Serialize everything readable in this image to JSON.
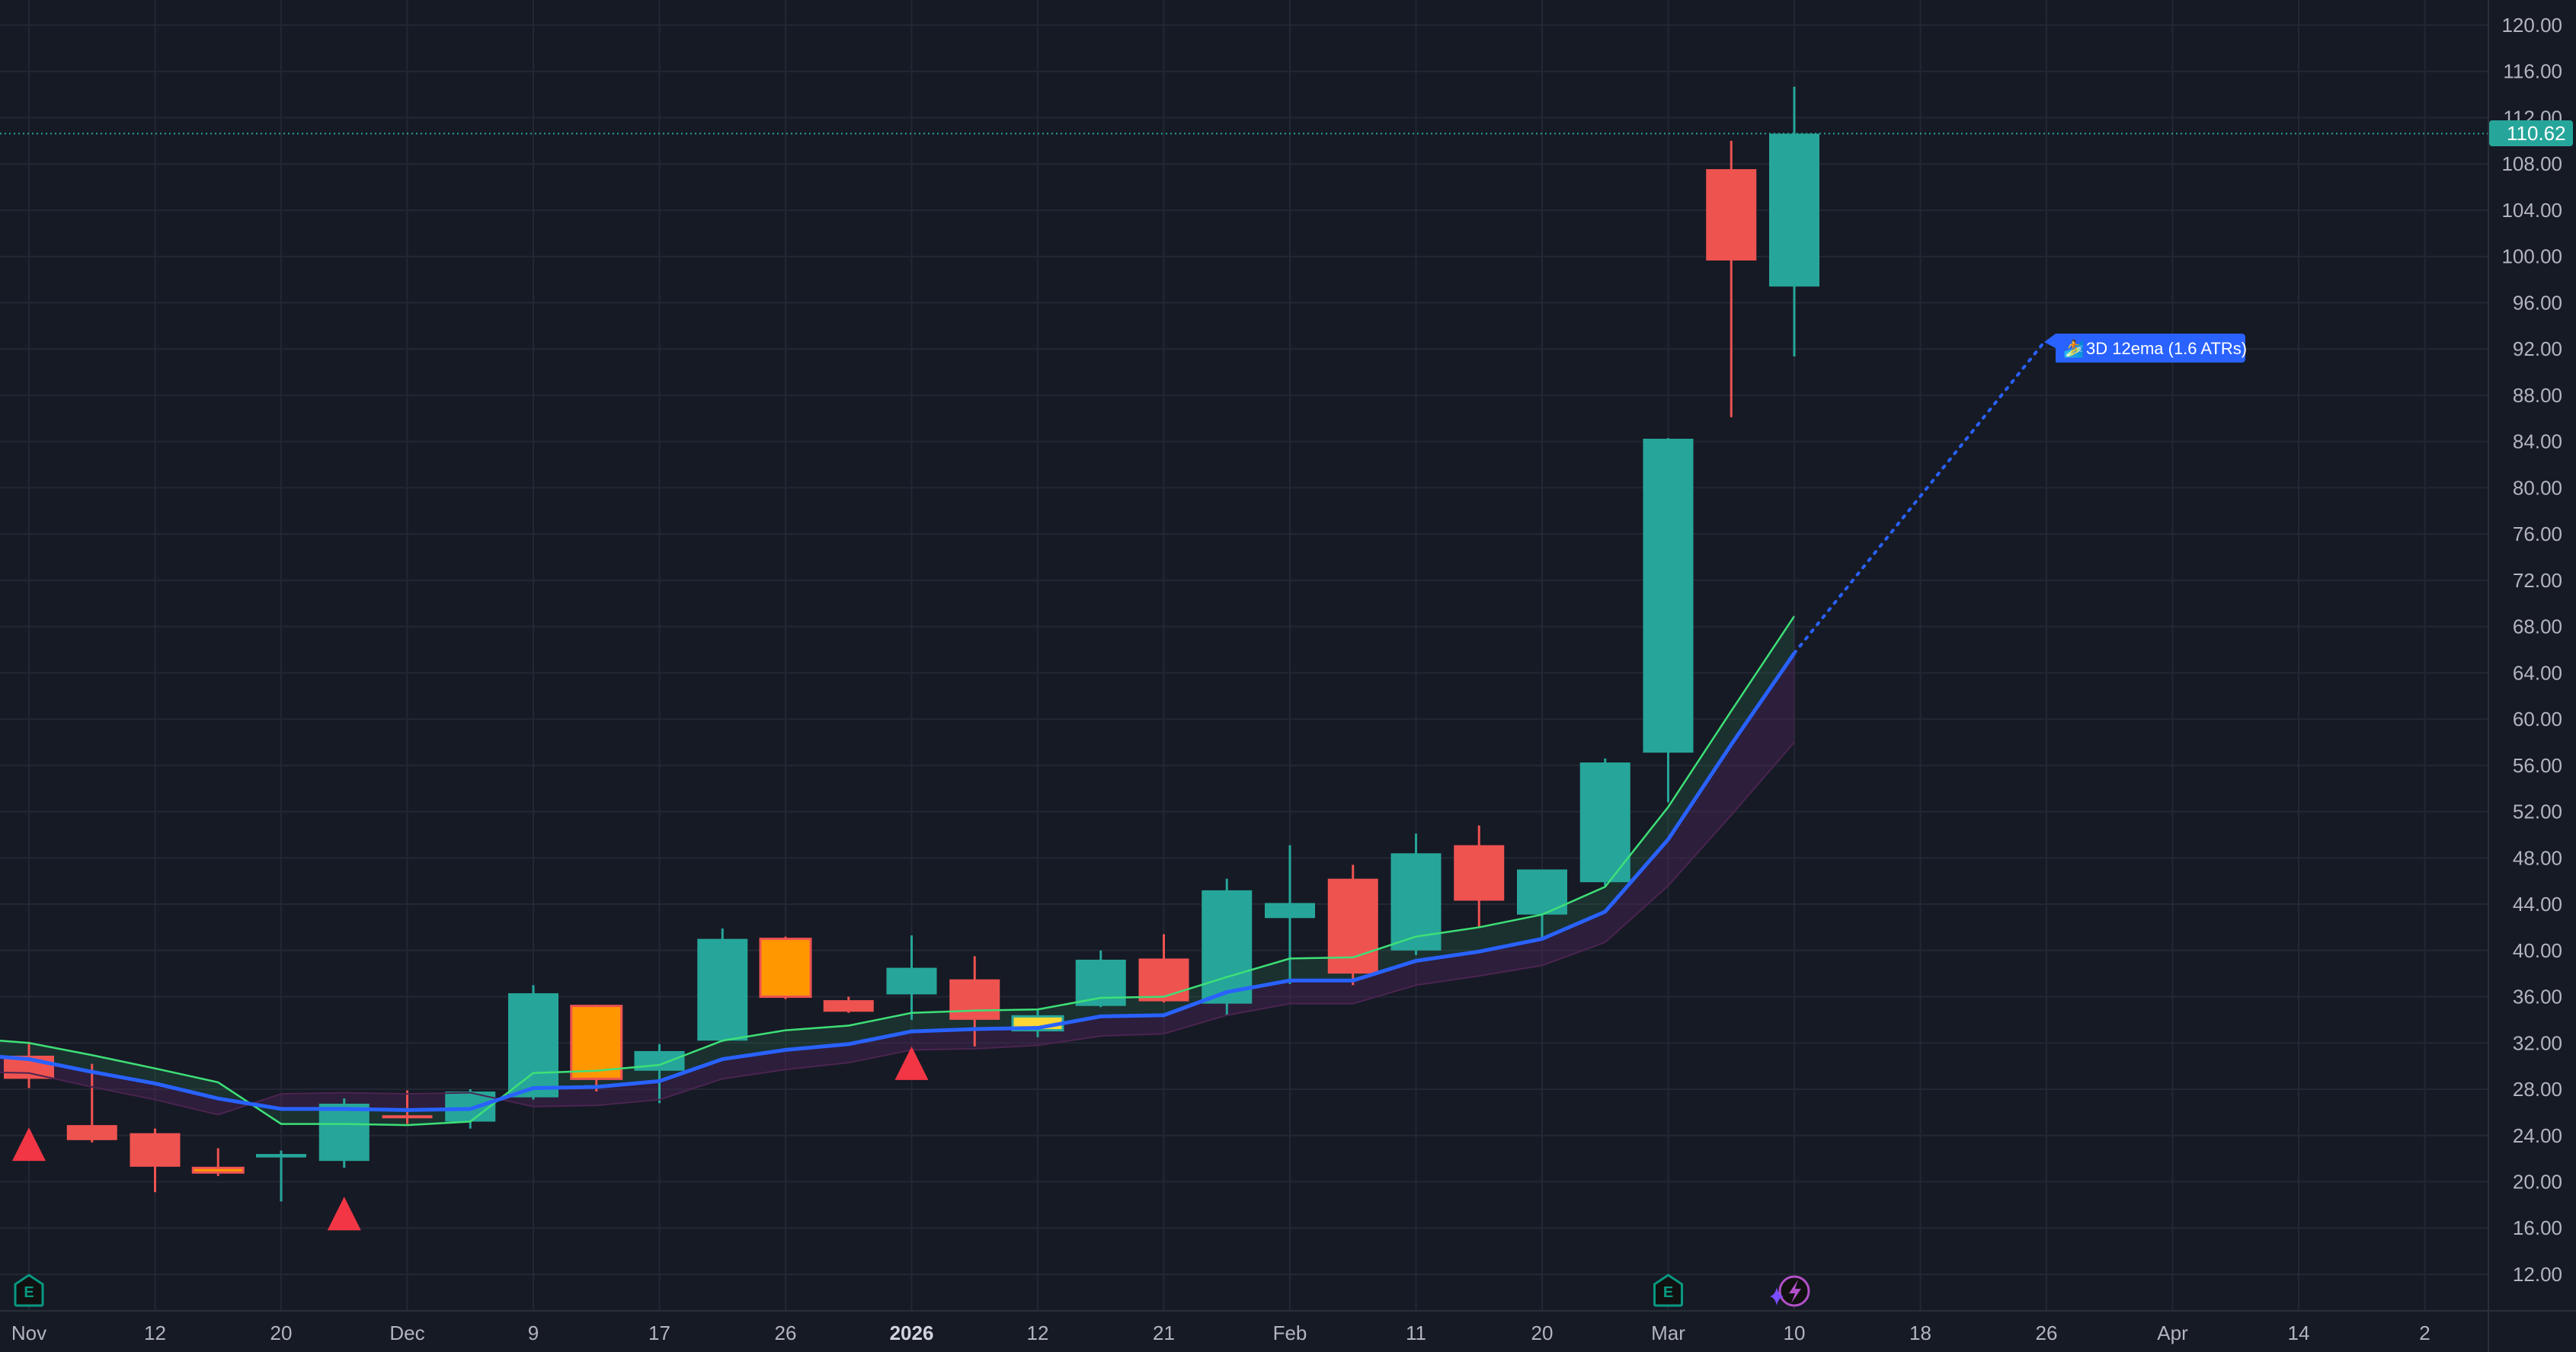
{
  "chart_data": {
    "type": "candlestick",
    "title": "",
    "timeframe": "3D",
    "xlabel": "",
    "ylabel": "",
    "ylim": [
      8.5,
      122.2
    ],
    "y_scale": "linear",
    "grid": true,
    "legend": null,
    "y_ticks": [
      "120.00",
      "116.00",
      "112.00",
      "108.00",
      "104.00",
      "100.00",
      "96.00",
      "92.00",
      "88.00",
      "84.00",
      "80.00",
      "76.00",
      "72.00",
      "68.00",
      "64.00",
      "60.00",
      "56.00",
      "52.00",
      "48.00",
      "44.00",
      "40.00",
      "36.00",
      "32.00",
      "28.00",
      "24.00",
      "20.00",
      "16.00",
      "12.00"
    ],
    "x_ticks": [
      {
        "label": "Nov",
        "bold": false
      },
      {
        "label": "12",
        "bold": false
      },
      {
        "label": "20",
        "bold": false
      },
      {
        "label": "Dec",
        "bold": false
      },
      {
        "label": "9",
        "bold": false
      },
      {
        "label": "17",
        "bold": false
      },
      {
        "label": "26",
        "bold": false
      },
      {
        "label": "2026",
        "bold": true
      },
      {
        "label": "12",
        "bold": false
      },
      {
        "label": "21",
        "bold": false
      },
      {
        "label": "Feb",
        "bold": false
      },
      {
        "label": "11",
        "bold": false
      },
      {
        "label": "20",
        "bold": false
      },
      {
        "label": "Mar",
        "bold": false
      },
      {
        "label": "10",
        "bold": false
      },
      {
        "label": "18",
        "bold": false
      },
      {
        "label": "26",
        "bold": false
      },
      {
        "label": "Apr",
        "bold": false
      },
      {
        "label": "14",
        "bold": false
      },
      {
        "label": "2",
        "bold": false
      }
    ],
    "candles": [
      {
        "o": 30.9,
        "h": 32.1,
        "l": 28.1,
        "c": 28.9,
        "color": "red"
      },
      {
        "o": 24.9,
        "h": 30.2,
        "l": 23.4,
        "c": 23.6,
        "color": "red"
      },
      {
        "o": 24.2,
        "h": 24.6,
        "l": 19.1,
        "c": 21.3,
        "color": "red"
      },
      {
        "o": 21.2,
        "h": 22.9,
        "l": 20.5,
        "c": 20.8,
        "color": "orange"
      },
      {
        "o": 22.1,
        "h": 22.7,
        "l": 18.3,
        "c": 22.4,
        "color": "teal"
      },
      {
        "o": 21.8,
        "h": 27.2,
        "l": 21.2,
        "c": 26.75,
        "color": "teal"
      },
      {
        "o": 25.75,
        "h": 27.9,
        "l": 25.0,
        "c": 25.65,
        "color": "red"
      },
      {
        "o": 25.2,
        "h": 28.0,
        "l": 24.6,
        "c": 27.8,
        "color": "teal"
      },
      {
        "o": 27.3,
        "h": 37.0,
        "l": 27.1,
        "c": 36.3,
        "color": "teal"
      },
      {
        "o": 35.2,
        "h": 35.3,
        "l": 27.8,
        "c": 28.9,
        "color": "orange"
      },
      {
        "o": 29.6,
        "h": 31.9,
        "l": 26.8,
        "c": 31.3,
        "color": "teal"
      },
      {
        "o": 32.2,
        "h": 41.9,
        "l": 32.1,
        "c": 41.0,
        "color": "teal"
      },
      {
        "o": 41.0,
        "h": 41.2,
        "l": 35.8,
        "c": 36.0,
        "color": "orange"
      },
      {
        "o": 35.7,
        "h": 36.0,
        "l": 34.6,
        "c": 34.7,
        "color": "red"
      },
      {
        "o": 36.2,
        "h": 41.3,
        "l": 34.0,
        "c": 38.5,
        "color": "teal"
      },
      {
        "o": 37.5,
        "h": 39.5,
        "l": 31.7,
        "c": 34.0,
        "color": "red"
      },
      {
        "o": 33.1,
        "h": 34.9,
        "l": 32.5,
        "c": 34.3,
        "color": "yellow"
      },
      {
        "o": 35.2,
        "h": 40.0,
        "l": 35.1,
        "c": 39.2,
        "color": "teal"
      },
      {
        "o": 39.3,
        "h": 41.4,
        "l": 35.5,
        "c": 35.6,
        "color": "red"
      },
      {
        "o": 35.4,
        "h": 46.2,
        "l": 34.4,
        "c": 45.2,
        "color": "teal"
      },
      {
        "o": 42.8,
        "h": 49.1,
        "l": 37.1,
        "c": 44.1,
        "color": "teal"
      },
      {
        "o": 46.2,
        "h": 47.4,
        "l": 37.0,
        "c": 38.0,
        "color": "red"
      },
      {
        "o": 40.0,
        "h": 50.1,
        "l": 39.6,
        "c": 48.4,
        "color": "teal"
      },
      {
        "o": 49.1,
        "h": 50.8,
        "l": 42.0,
        "c": 44.3,
        "color": "red"
      },
      {
        "o": 43.1,
        "h": 47.0,
        "l": 41.0,
        "c": 47.0,
        "color": "teal"
      },
      {
        "o": 45.9,
        "h": 56.6,
        "l": 45.6,
        "c": 56.25,
        "color": "teal"
      },
      {
        "o": 57.1,
        "h": 84.3,
        "l": 52.8,
        "c": 84.24,
        "color": "teal"
      },
      {
        "o": 107.55,
        "h": 110.0,
        "l": 86.1,
        "c": 99.65,
        "color": "red"
      },
      {
        "o": 97.4,
        "h": 114.67,
        "l": 91.35,
        "c": 110.62,
        "color": "teal"
      }
    ],
    "series": [
      {
        "name": "EMA upper (green)",
        "color": "#3ee077",
        "values": [
          32.0,
          30.95,
          29.8,
          28.6,
          25.0,
          25.0,
          24.9,
          25.2,
          29.4,
          29.6,
          30.1,
          32.2,
          33.1,
          33.5,
          34.6,
          34.8,
          34.9,
          35.9,
          36.0,
          37.7,
          39.3,
          39.4,
          41.2,
          42.0,
          43.1,
          45.5,
          52.4,
          60.7,
          68.9
        ]
      },
      {
        "name": "3D 12ema (blue)",
        "color": "#2962ff",
        "values": [
          30.6,
          29.5,
          28.5,
          27.2,
          26.3,
          26.3,
          26.2,
          26.3,
          28.1,
          28.2,
          28.7,
          30.6,
          31.4,
          31.9,
          33.0,
          33.2,
          33.3,
          34.3,
          34.4,
          36.4,
          37.4,
          37.4,
          39.1,
          39.9,
          41.0,
          43.35,
          49.6,
          57.8,
          65.7
        ]
      },
      {
        "name": "ATR lower band (purple)",
        "color": "#4a2450",
        "values": [
          29.4,
          28.2,
          27.1,
          25.8,
          27.6,
          27.7,
          27.6,
          27.7,
          26.5,
          26.6,
          27.1,
          28.9,
          29.7,
          30.3,
          31.4,
          31.5,
          31.8,
          32.6,
          32.8,
          34.4,
          35.4,
          35.4,
          37.0,
          37.8,
          38.7,
          40.7,
          45.6,
          51.7,
          58.0
        ]
      }
    ],
    "left_edge_values": {
      "green": 32.2,
      "blue": 30.8,
      "purple": 29.45
    },
    "projection": {
      "from_index": 28,
      "from_value": 65.7,
      "to_x": 2683,
      "to_value": 92.6,
      "style": "dotted",
      "color": "#2962ff"
    },
    "signal_triangles": [
      {
        "index": 0,
        "apex_value": 24.7,
        "base_value": 21.8
      },
      {
        "index": 5,
        "apex_value": 18.7,
        "base_value": 15.8
      },
      {
        "index": 14,
        "apex_value": 31.7,
        "base_value": 28.8
      }
    ],
    "earnings_markers": [
      {
        "index": 0
      },
      {
        "index": 26
      }
    ],
    "event_markers": [
      {
        "index": 28,
        "type": "lightning"
      }
    ],
    "last_price": 110.62
  },
  "price_axis": {
    "last_price_label": "110.62"
  },
  "annotation": {
    "label": "3D 12ema (1.6 ATRs)",
    "emoji": "🏄",
    "color": "#2962ff"
  },
  "markers": {
    "earnings_letter": "E"
  },
  "colors": {
    "background": "#161a25",
    "grid": "#232733",
    "axis_text": "#b2b5be",
    "up": "#26a69a",
    "down": "#ef5350",
    "orange": "#ff9800",
    "yellow": "#fdd835",
    "triangle": "#f23645",
    "last_price": "#26a69a",
    "earnings": "#089981",
    "lightning": "#b250c8",
    "sparkle": "#7b4dff",
    "green_fill": "rgba(38,110,80,0.28)",
    "purple_fill": "rgba(90,40,100,0.35)"
  }
}
